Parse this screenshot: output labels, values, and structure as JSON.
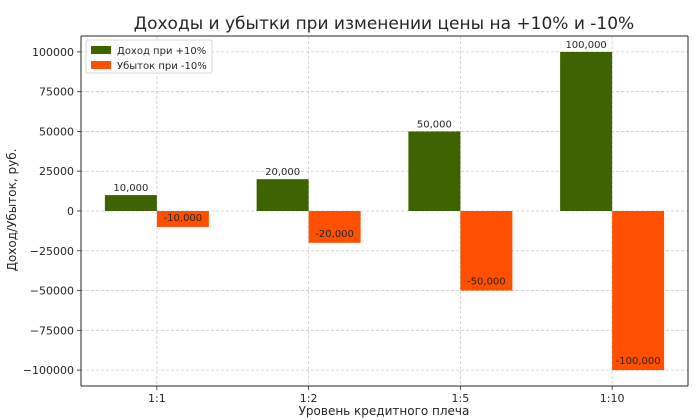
{
  "chart_data": {
    "type": "bar",
    "title": "Доходы и убытки при изменении цены на +10% и -10%",
    "xlabel": "Уровень кредитного плеча",
    "ylabel": "Доход/Убыток, руб.",
    "categories": [
      "1:1",
      "1:2",
      "1:5",
      "1:10"
    ],
    "series": [
      {
        "name": "Доход при +10%",
        "color": "#3d6400",
        "values": [
          10000,
          20000,
          50000,
          100000
        ],
        "labels": [
          "10,000",
          "20,000",
          "50,000",
          "100,000"
        ]
      },
      {
        "name": "Убыток при -10%",
        "color": "#ff5000",
        "values": [
          -10000,
          -20000,
          -50000,
          -100000
        ],
        "labels": [
          "-10,000",
          "-20,000",
          "-50,000",
          "-100,000"
        ]
      }
    ],
    "ylim": [
      -110000,
      110000
    ],
    "yticks": [
      100000,
      75000,
      50000,
      25000,
      0,
      -25000,
      -50000,
      -75000,
      -100000
    ],
    "ytick_labels": [
      "100000",
      "75000",
      "50000",
      "25000",
      "0",
      "−25000",
      "−50000",
      "−75000",
      "−100000"
    ],
    "grid": true,
    "legend_position": "top-left"
  }
}
